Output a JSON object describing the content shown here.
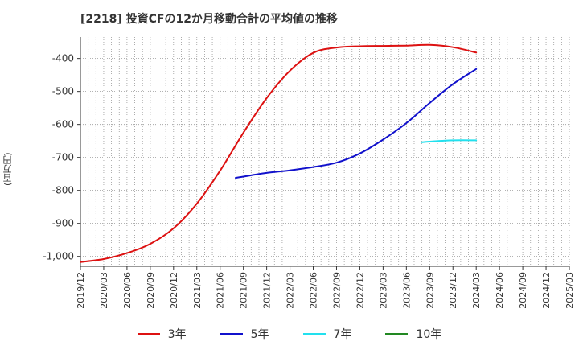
{
  "chart_data": {
    "type": "line",
    "title": "[2218]  投資CFの12か月移動合計の平均値の推移",
    "ylabel": "(百万円)",
    "xlabel": "",
    "ylim": [
      -1030,
      -335
    ],
    "yticks": [
      -400,
      -500,
      -600,
      -700,
      -800,
      -900,
      -1000
    ],
    "ytick_labels": [
      "-400",
      "-500",
      "-600",
      "-700",
      "-800",
      "-900",
      "-1,000"
    ],
    "x_categories": [
      "2019/12",
      "2020/03",
      "2020/06",
      "2020/09",
      "2020/12",
      "2021/03",
      "2021/06",
      "2021/09",
      "2021/12",
      "2022/03",
      "2022/06",
      "2022/09",
      "2022/12",
      "2023/03",
      "2023/06",
      "2023/09",
      "2023/12",
      "2024/03",
      "2024/06",
      "2024/09",
      "2024/12",
      "2025/03"
    ],
    "grid": true,
    "legend_position": "bottom",
    "series": [
      {
        "name": "3年",
        "color": "#dd1111",
        "x": [
          "2019/12",
          "2020/03",
          "2020/06",
          "2020/09",
          "2020/12",
          "2021/03",
          "2021/06",
          "2021/09",
          "2021/12",
          "2022/03",
          "2022/06",
          "2022/09",
          "2022/12",
          "2023/03",
          "2023/06",
          "2023/09",
          "2023/12",
          "2024/03"
        ],
        "values": [
          -1017,
          -1008,
          -990,
          -962,
          -915,
          -840,
          -740,
          -625,
          -520,
          -437,
          -383,
          -367,
          -363,
          -362,
          -361,
          -359,
          -366,
          -382
        ]
      },
      {
        "name": "5年",
        "color": "#1111cc",
        "x": [
          "2021/08",
          "2021/09",
          "2021/12",
          "2022/03",
          "2022/06",
          "2022/09",
          "2022/12",
          "2023/03",
          "2023/06",
          "2023/09",
          "2023/12",
          "2024/03"
        ],
        "values": [
          -762,
          -758,
          -747,
          -739,
          -729,
          -716,
          -688,
          -646,
          -596,
          -535,
          -478,
          -432
        ]
      },
      {
        "name": "7年",
        "color": "#22e0ee",
        "x": [
          "2023/08",
          "2023/09",
          "2023/12",
          "2024/03"
        ],
        "values": [
          -654,
          -652,
          -648,
          -648
        ]
      },
      {
        "name": "10年",
        "color": "#228822",
        "x": [],
        "values": []
      }
    ]
  }
}
